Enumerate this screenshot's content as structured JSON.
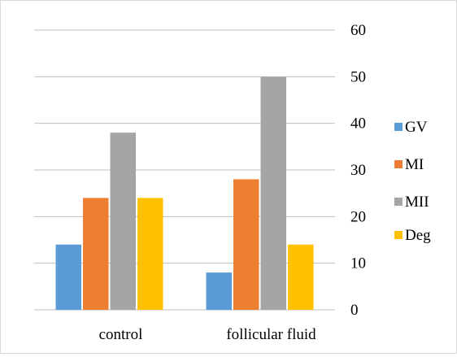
{
  "chart_data": {
    "type": "bar",
    "categories": [
      "control",
      "follicular fluid"
    ],
    "series": [
      {
        "name": "GV",
        "color": "#5B9BD5",
        "values": [
          14,
          8
        ]
      },
      {
        "name": "MI",
        "color": "#ED7D31",
        "values": [
          24,
          28
        ]
      },
      {
        "name": "MII",
        "color": "#A5A5A5",
        "values": [
          38,
          50
        ]
      },
      {
        "name": "Deg",
        "color": "#FFC000",
        "values": [
          24,
          14
        ]
      }
    ],
    "ylim": [
      0,
      60
    ],
    "yticks": [
      "0",
      "10",
      "20",
      "30",
      "40",
      "50",
      "60"
    ],
    "y_axis_side": "right",
    "grid": true,
    "legend_position": "right",
    "title": "",
    "xlabel": "",
    "ylabel": ""
  }
}
